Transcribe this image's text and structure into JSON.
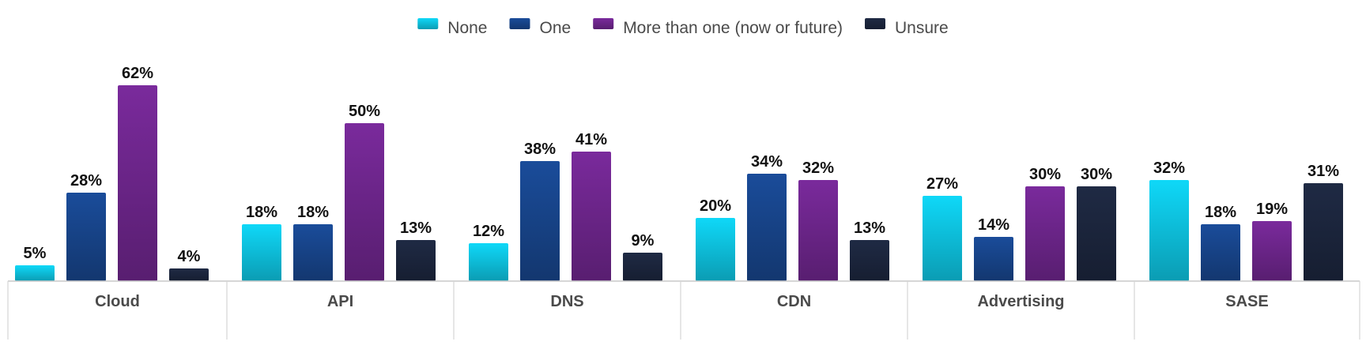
{
  "chart_data": {
    "type": "bar",
    "categories": [
      "Cloud",
      "API",
      "DNS",
      "CDN",
      "Advertising",
      "SASE"
    ],
    "series": [
      {
        "name": "None",
        "color": "#0FD8F8",
        "values": [
          5,
          18,
          12,
          20,
          27,
          32
        ]
      },
      {
        "name": "One",
        "color": "#1A4C9A",
        "values": [
          28,
          18,
          38,
          34,
          14,
          18
        ]
      },
      {
        "name": "More than one (now or future)",
        "color": "#7A2A9C",
        "values": [
          62,
          50,
          41,
          32,
          30,
          19
        ]
      },
      {
        "name": "Unsure",
        "color": "#1F2A44",
        "values": [
          4,
          13,
          9,
          13,
          30,
          31
        ]
      }
    ],
    "value_labels": [
      [
        "5%",
        "18%",
        "12%",
        "20%",
        "27%",
        "32%"
      ],
      [
        "28%",
        "18%",
        "38%",
        "34%",
        "14%",
        "18%"
      ],
      [
        "62%",
        "50%",
        "41%",
        "32%",
        "30%",
        "19%"
      ],
      [
        "4%",
        "13%",
        "9%",
        "13%",
        "30%",
        "31%"
      ]
    ],
    "ylim": [
      0,
      100
    ],
    "legend_position": "top-center",
    "grid": false
  }
}
